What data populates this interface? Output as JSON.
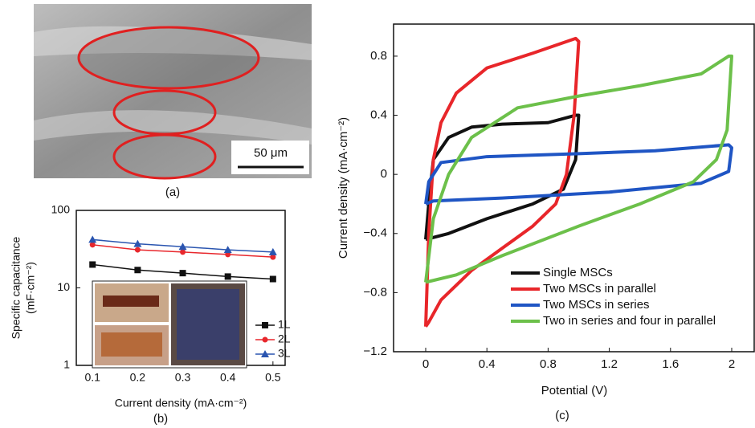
{
  "image_panel": {
    "scale_bar": "50 μm",
    "caption": "(a)"
  },
  "chart_data": [
    {
      "type": "line",
      "caption": "(b)",
      "ylabel": [
        "Specific capacitance",
        "(mF·cm⁻²)"
      ],
      "xlabel": "Current density (mA·cm⁻²)",
      "x": [
        0.1,
        0.2,
        0.3,
        0.4,
        0.5
      ],
      "xlim": [
        0.064,
        0.527
      ],
      "xticks": [
        0.1,
        0.2,
        0.3,
        0.4,
        0.5
      ],
      "ylim": [
        1,
        100
      ],
      "yticks": [
        1,
        10,
        100
      ],
      "log_y": true,
      "legend": "lower right",
      "series": [
        {
          "name": "1L",
          "color": "#111111",
          "marker": "square",
          "values": [
            20,
            17,
            15.5,
            14,
            13
          ]
        },
        {
          "name": "2L",
          "color": "#e8272c",
          "marker": "circle",
          "values": [
            36,
            31,
            29,
            27,
            25
          ]
        },
        {
          "name": "3L",
          "color": "#2a55b0",
          "marker": "triangle",
          "values": [
            42,
            37,
            34,
            31,
            29
          ]
        }
      ]
    },
    {
      "type": "line",
      "caption": "(c)",
      "ylabel": [
        "Current density (mA·cm⁻²)"
      ],
      "xlabel": "Potential (V)",
      "xlim": [
        -0.21,
        2.147
      ],
      "xticks": [
        0,
        0.4,
        0.8,
        1.2,
        1.6,
        2.0
      ],
      "ylim": [
        -1.2,
        1.017
      ],
      "yticks": [
        {
          "value": -1.2,
          "label": "−1.2"
        },
        {
          "value": -0.8,
          "label": "−0.8"
        },
        {
          "value": -0.4,
          "label": "−0.4"
        },
        0,
        0.4,
        0.8
      ],
      "log_y": false,
      "legend": "lower center",
      "series": [
        {
          "name": "Single MSCs",
          "color": "#111111",
          "x": [
            0,
            0.02,
            0.05,
            0.15,
            0.3,
            0.5,
            0.8,
            0.98,
            1.0,
            0.98,
            0.9,
            0.7,
            0.4,
            0.15,
            0
          ],
          "values": [
            -0.44,
            -0.2,
            0.1,
            0.25,
            0.32,
            0.34,
            0.35,
            0.4,
            0.4,
            0.1,
            -0.1,
            -0.2,
            -0.3,
            -0.4,
            -0.44
          ]
        },
        {
          "name": "Two MSCs in parallel",
          "color": "#e8262a",
          "x": [
            0,
            0.02,
            0.05,
            0.1,
            0.2,
            0.4,
            0.7,
            0.98,
            1.0,
            0.97,
            0.92,
            0.85,
            0.7,
            0.5,
            0.3,
            0.1,
            0.02,
            0
          ],
          "values": [
            -1.03,
            -0.4,
            0.1,
            0.35,
            0.55,
            0.72,
            0.82,
            0.92,
            0.9,
            0.4,
            0.0,
            -0.2,
            -0.35,
            -0.5,
            -0.65,
            -0.85,
            -1.0,
            -1.03
          ]
        },
        {
          "name": "Two MSCs in series",
          "color": "#1f55c4",
          "x": [
            0,
            0.02,
            0.1,
            0.4,
            1.0,
            1.5,
            1.98,
            2.0,
            1.98,
            1.8,
            1.2,
            0.5,
            0.05,
            0
          ],
          "values": [
            -0.2,
            -0.05,
            0.08,
            0.12,
            0.14,
            0.16,
            0.2,
            0.18,
            0.02,
            -0.06,
            -0.12,
            -0.16,
            -0.18,
            -0.2
          ]
        },
        {
          "name": "Two in series and four in parallel",
          "color": "#6cc04a",
          "x": [
            0,
            0.05,
            0.15,
            0.3,
            0.6,
            1.0,
            1.4,
            1.8,
            1.98,
            2.0,
            1.97,
            1.9,
            1.75,
            1.4,
            1.0,
            0.5,
            0.2,
            0
          ],
          "values": [
            -0.73,
            -0.3,
            0.0,
            0.25,
            0.45,
            0.53,
            0.6,
            0.68,
            0.8,
            0.8,
            0.3,
            0.1,
            -0.05,
            -0.2,
            -0.35,
            -0.55,
            -0.68,
            -0.73
          ]
        }
      ]
    }
  ]
}
